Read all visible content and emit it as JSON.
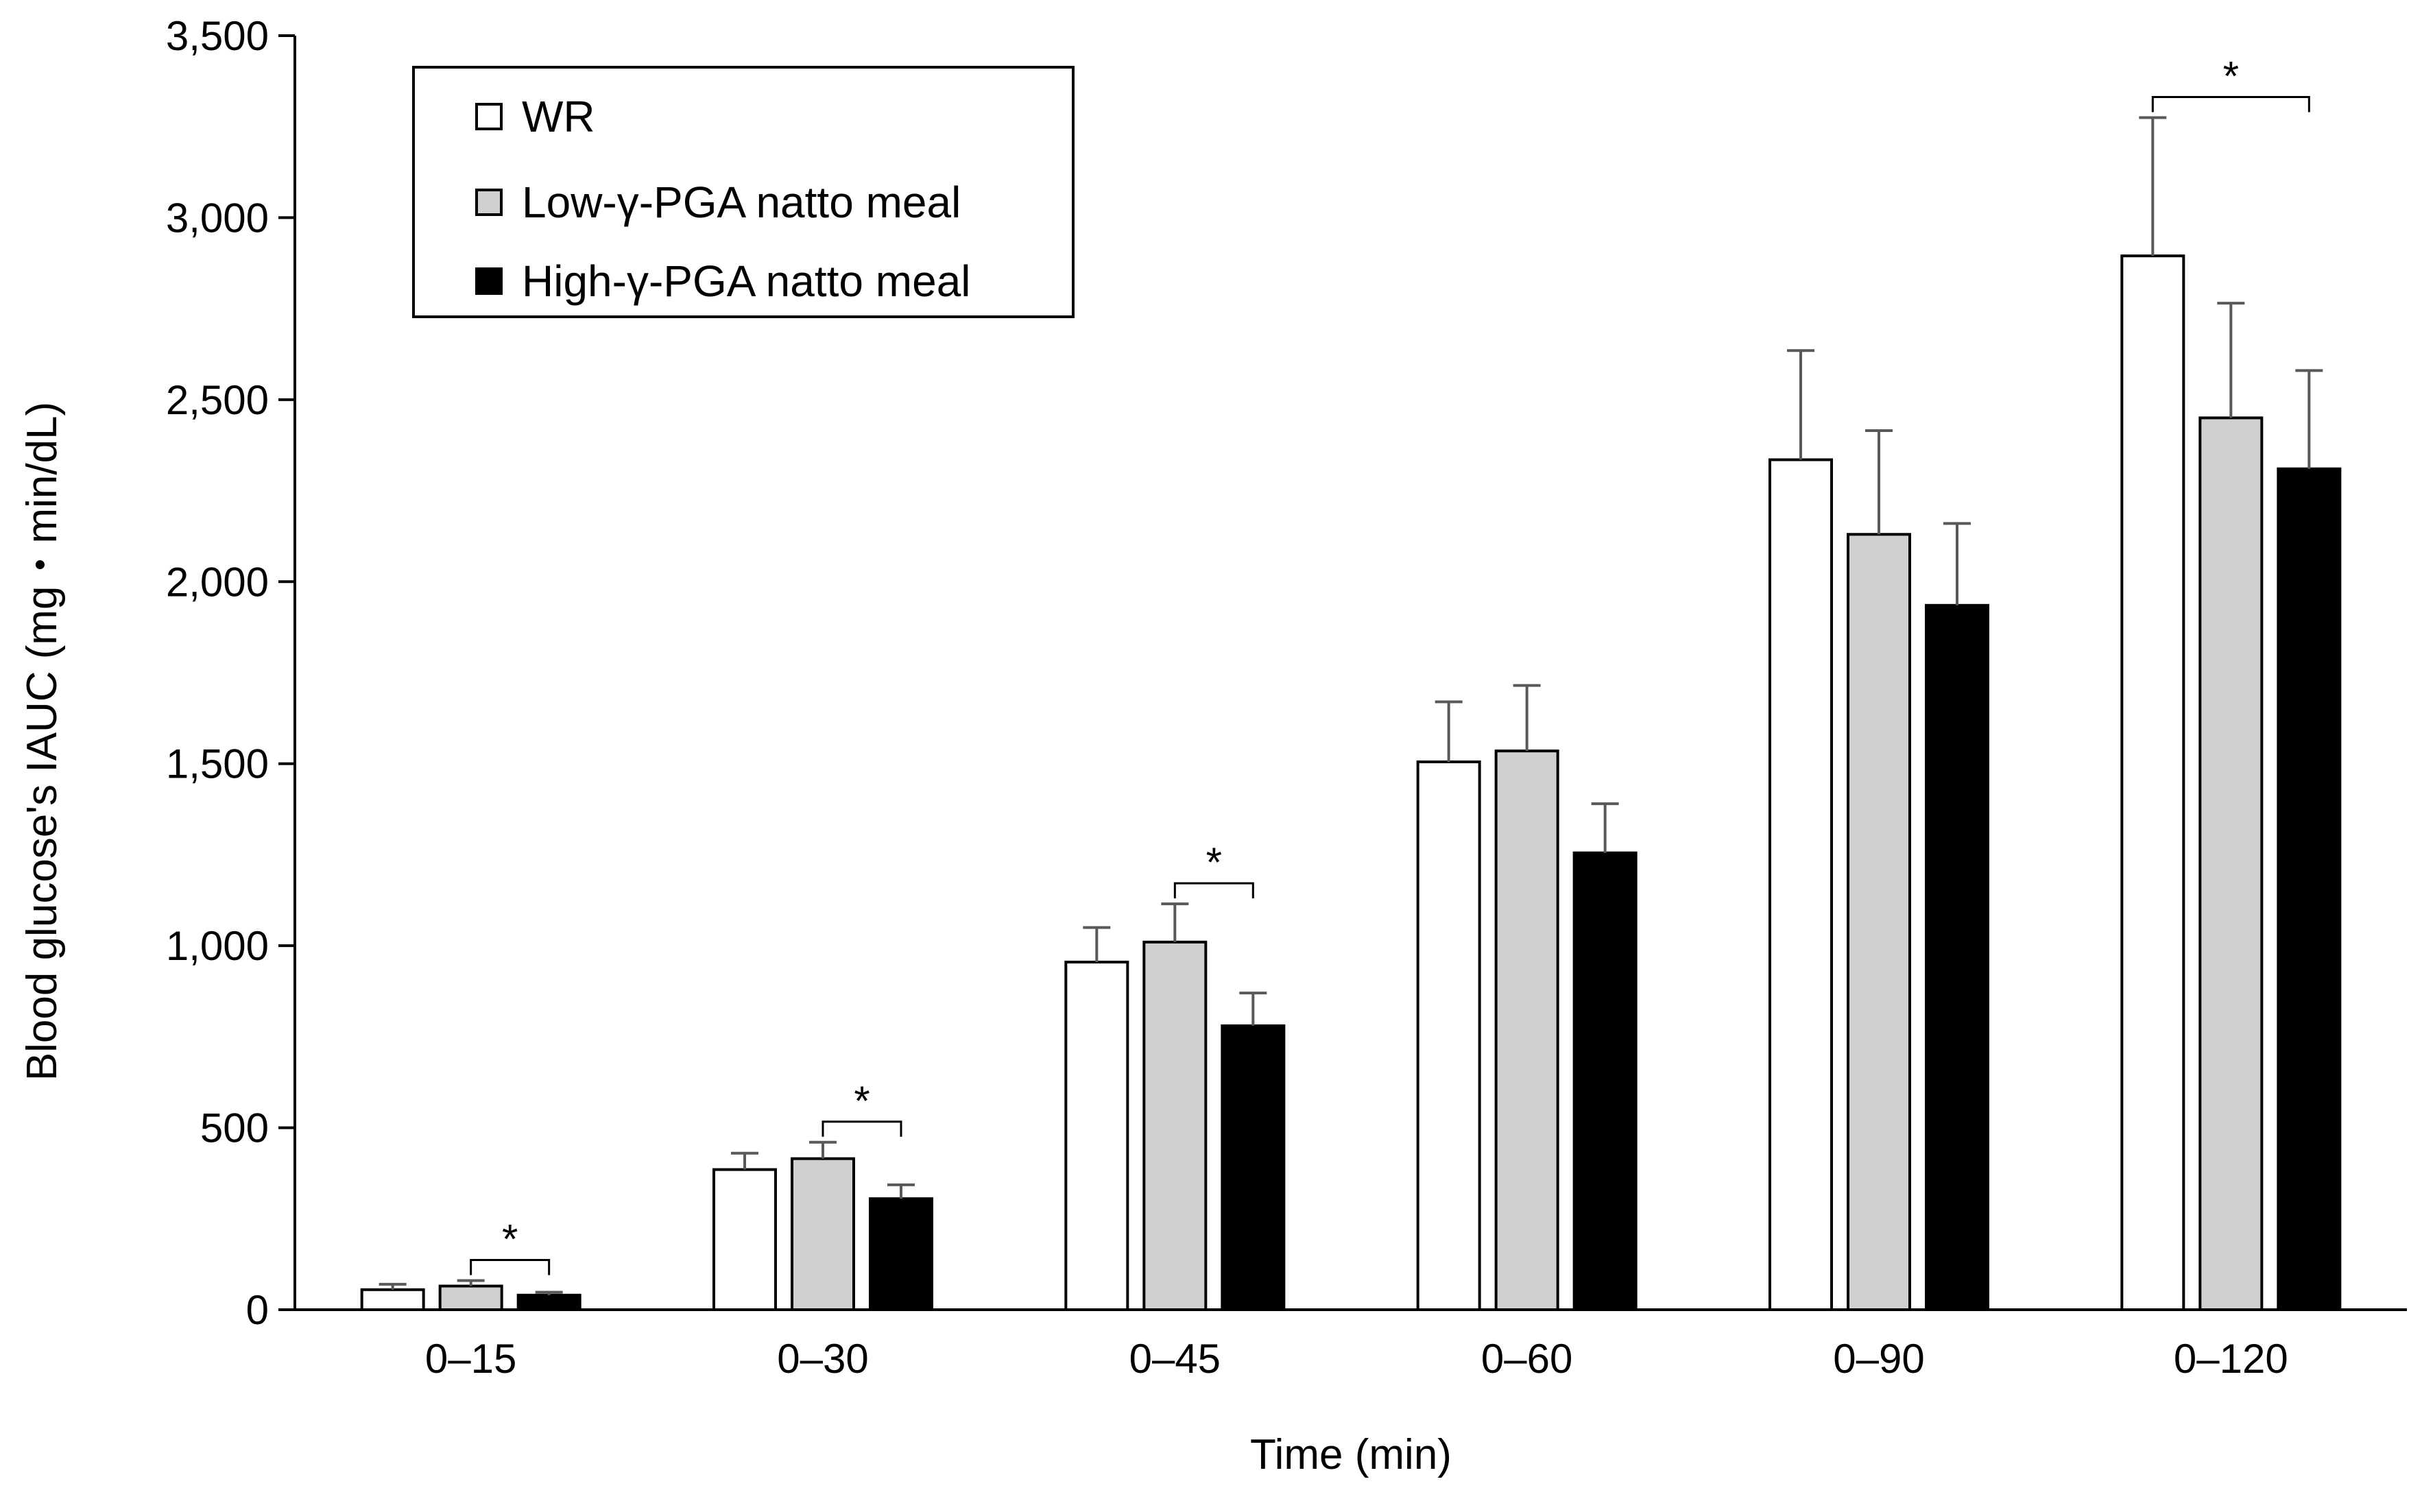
{
  "chart_data": {
    "type": "bar",
    "xlabel": "Time (min)",
    "ylabel": "Blood glucose's IAUC (mg・min/dL)",
    "ylim": [
      0,
      3500
    ],
    "yticks": [
      0,
      500,
      1000,
      1500,
      2000,
      2500,
      3000,
      3500
    ],
    "ytick_labels": [
      "0",
      "500",
      "1,000",
      "1,500",
      "2,000",
      "2,500",
      "3,000",
      "3,500"
    ],
    "categories": [
      "0–15",
      "0–30",
      "0–45",
      "0–60",
      "0–90",
      "0–120"
    ],
    "series": [
      {
        "name": "WR",
        "values": [
          55,
          385,
          955,
          1505,
          2335,
          2895
        ],
        "errors": [
          15,
          45,
          95,
          165,
          300,
          380
        ]
      },
      {
        "name": "Low-γ-PGA natto meal",
        "values": [
          65,
          415,
          1010,
          1535,
          2130,
          2450
        ],
        "errors": [
          15,
          45,
          105,
          180,
          285,
          315
        ]
      },
      {
        "name": "High-γ-PGA natto meal",
        "values": [
          40,
          305,
          780,
          1255,
          1935,
          2310
        ],
        "errors": [
          8,
          38,
          90,
          135,
          225,
          270
        ]
      }
    ],
    "significance": [
      {
        "category": "0–15",
        "between": [
          "Low-γ-PGA natto meal",
          "High-γ-PGA natto meal"
        ],
        "label": "*"
      },
      {
        "category": "0–30",
        "between": [
          "Low-γ-PGA natto meal",
          "High-γ-PGA natto meal"
        ],
        "label": "*"
      },
      {
        "category": "0–45",
        "between": [
          "Low-γ-PGA natto meal",
          "High-γ-PGA natto meal"
        ],
        "label": "*"
      },
      {
        "category": "0–120",
        "between": [
          "WR",
          "High-γ-PGA natto meal"
        ],
        "label": "*"
      }
    ],
    "legend_position": "top-left",
    "grid": false
  },
  "colors": {
    "WR": "#ffffff",
    "Low-γ-PGA natto meal": "#d0d0d0",
    "High-γ-PGA natto meal": "#000000",
    "error_bar": "#595959",
    "axis": "#000000"
  }
}
